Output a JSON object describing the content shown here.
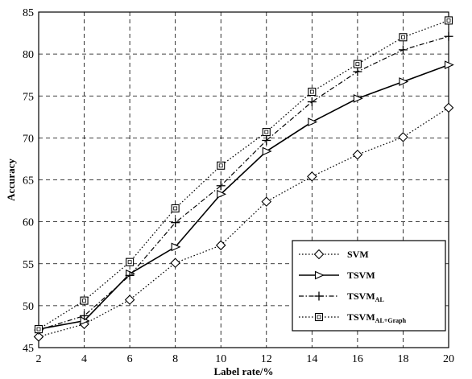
{
  "chart_data": {
    "type": "line",
    "xlabel": "Label rate/%",
    "ylabel": "Accuracy",
    "x": [
      2,
      4,
      6,
      8,
      10,
      12,
      14,
      16,
      18,
      20
    ],
    "xlim": [
      2,
      20
    ],
    "ylim": [
      45,
      85
    ],
    "xticks": [
      "2",
      "4",
      "6",
      "8",
      "10",
      "12",
      "14",
      "16",
      "18",
      "20"
    ],
    "yticks": [
      "45",
      "50",
      "55",
      "60",
      "65",
      "70",
      "75",
      "80",
      "85"
    ],
    "grid": true,
    "legend_position": "bottom-right",
    "series": [
      {
        "name": "SVM",
        "marker": "diamond",
        "line": "dotted",
        "values": [
          46.3,
          47.8,
          50.7,
          55.1,
          57.2,
          62.4,
          65.4,
          68.0,
          70.1,
          73.6
        ]
      },
      {
        "name": "TSVM",
        "marker": "triangle-right",
        "line": "solid",
        "values": [
          47.2,
          48.2,
          53.8,
          57.0,
          63.3,
          68.4,
          71.9,
          74.7,
          76.7,
          78.7
        ]
      },
      {
        "name": "TSVM",
        "name_sub": "AL",
        "marker": "plus",
        "line": "dashdot",
        "values": [
          47.1,
          48.8,
          53.6,
          59.9,
          64.3,
          69.7,
          74.3,
          77.9,
          80.5,
          82.1
        ]
      },
      {
        "name": "TSVM",
        "name_sub": "AL+Graph",
        "marker": "square",
        "line": "dotted",
        "values": [
          47.2,
          50.6,
          55.2,
          61.6,
          66.7,
          70.7,
          75.5,
          78.8,
          82.0,
          84.0
        ]
      }
    ]
  }
}
